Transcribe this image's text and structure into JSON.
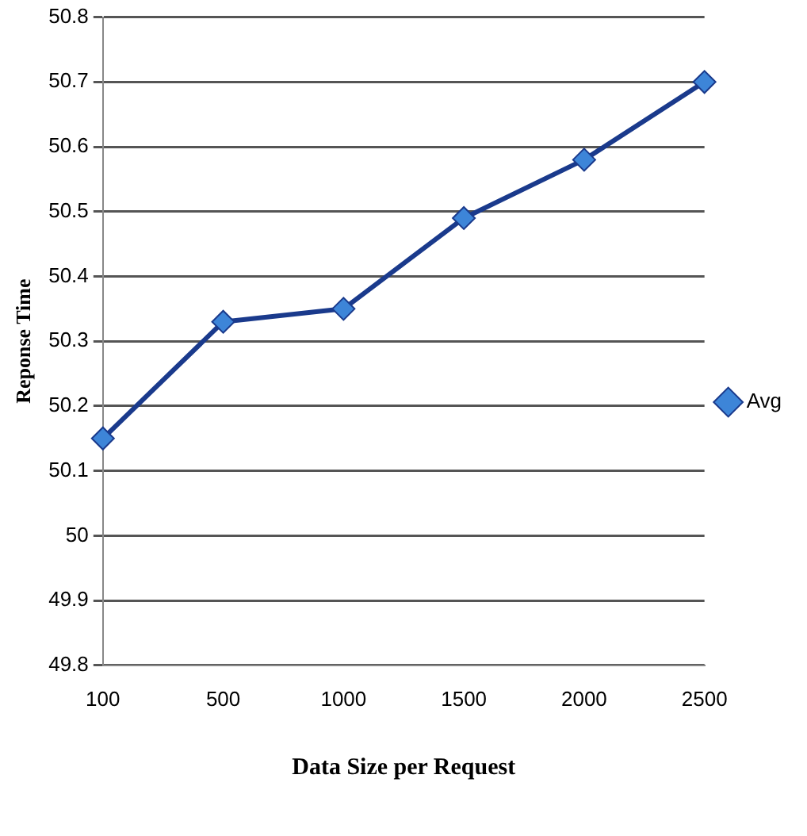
{
  "chart_data": {
    "type": "line",
    "xlabel": "Data Size per Request",
    "ylabel": "Reponse Time",
    "categories": [
      "100",
      "500",
      "1000",
      "1500",
      "2000",
      "2500"
    ],
    "series": [
      {
        "name": "Avg",
        "color": "#1a3a8c",
        "values": [
          50.15,
          50.33,
          50.35,
          50.49,
          50.58,
          50.7
        ]
      }
    ],
    "ylim": [
      49.8,
      50.8
    ],
    "yticks": [
      49.8,
      49.9,
      50,
      50.1,
      50.2,
      50.3,
      50.4,
      50.5,
      50.6,
      50.7,
      50.8
    ],
    "grid": "y",
    "legend": "right",
    "marker": "diamond",
    "line_style": "solid"
  }
}
